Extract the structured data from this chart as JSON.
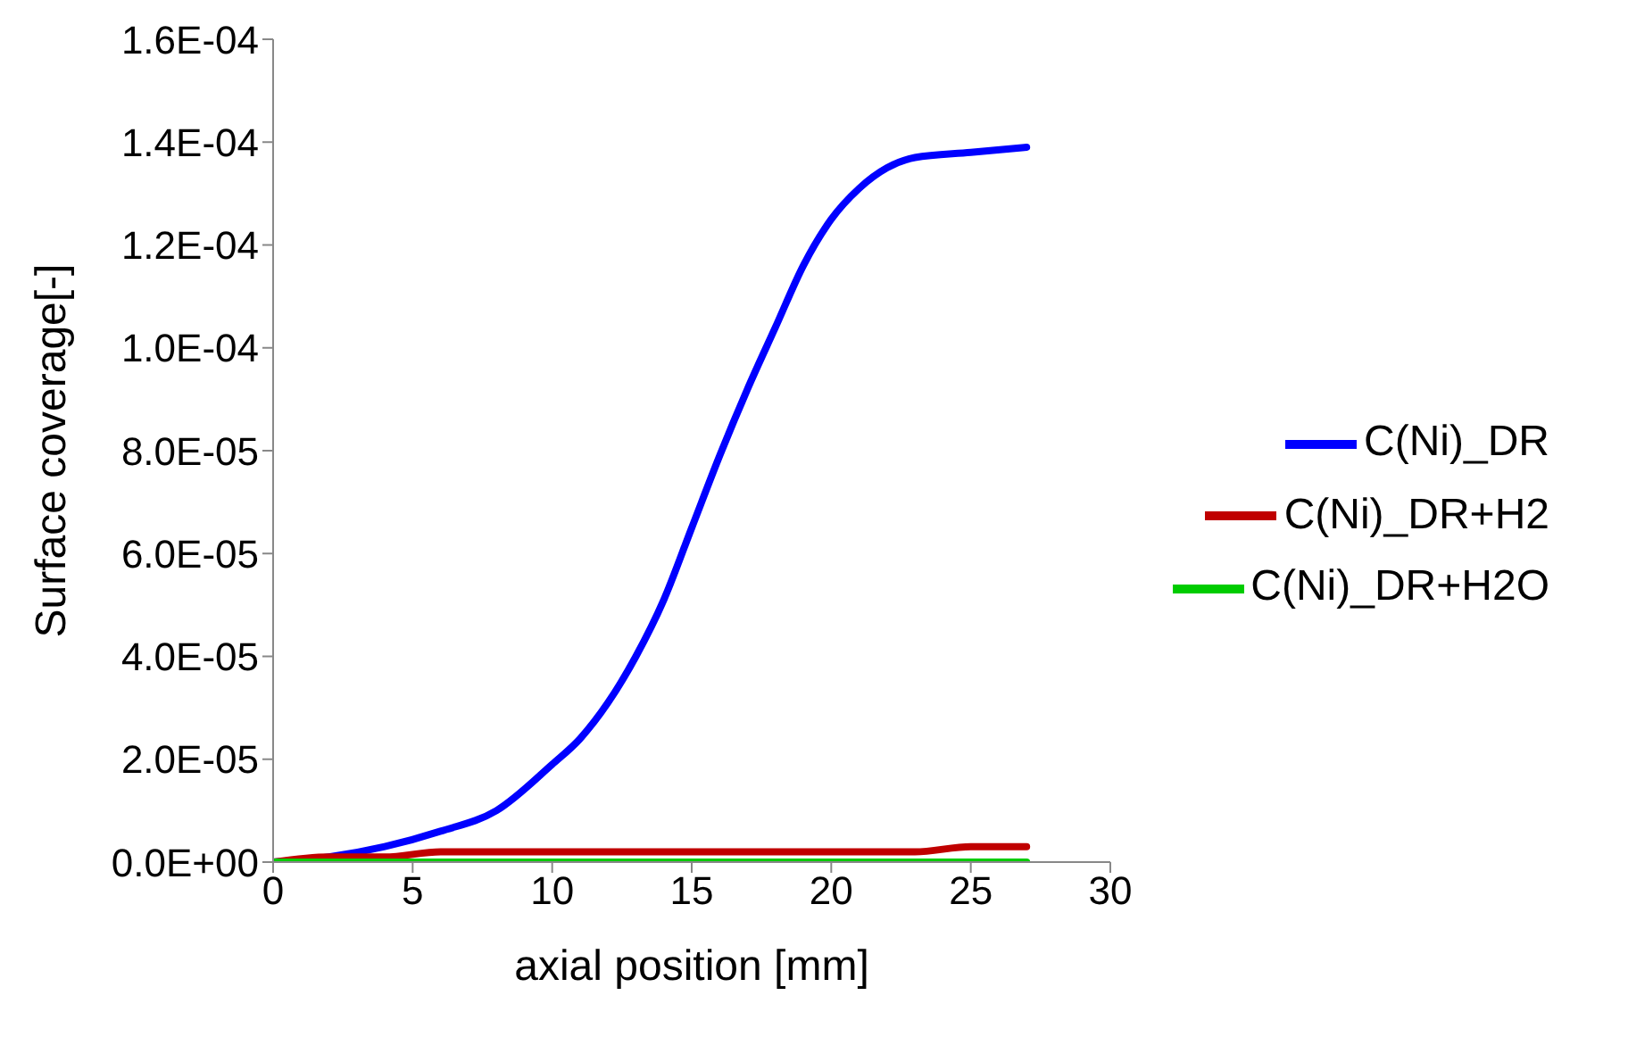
{
  "chart_data": {
    "type": "line",
    "xlabel": "axial position [mm]",
    "ylabel": "Surface coverage[-]",
    "xlim": [
      0,
      30
    ],
    "xticks": [
      0,
      5,
      10,
      15,
      20,
      25,
      30
    ],
    "ylim": [
      0,
      0.00016
    ],
    "yticks": [
      {
        "value": 0,
        "label": "0.0E+00"
      },
      {
        "value": 2e-05,
        "label": "2.0E-05"
      },
      {
        "value": 4e-05,
        "label": "4.0E-05"
      },
      {
        "value": 6e-05,
        "label": "6.0E-05"
      },
      {
        "value": 8e-05,
        "label": "8.0E-05"
      },
      {
        "value": 0.0001,
        "label": "1.0E-04"
      },
      {
        "value": 0.00012,
        "label": "1.2E-04"
      },
      {
        "value": 0.00014,
        "label": "1.4E-04"
      },
      {
        "value": 0.00016,
        "label": "1.6E-04"
      }
    ],
    "x": [
      0,
      2,
      4,
      6,
      8,
      10,
      11,
      12,
      13,
      14,
      15,
      16,
      17,
      18,
      19,
      20,
      21,
      22,
      23,
      25,
      27
    ],
    "series": [
      {
        "name": "C(Ni)_DR",
        "color": "#0000ff",
        "values": [
          0,
          1e-06,
          3e-06,
          6e-06,
          1e-05,
          1.9e-05,
          2.4e-05,
          3.1e-05,
          4e-05,
          5.1e-05,
          6.5e-05,
          7.9e-05,
          9.2e-05,
          0.000104,
          0.000116,
          0.000125,
          0.000131,
          0.000135,
          0.000137,
          0.000138,
          0.000139
        ]
      },
      {
        "name": "C(Ni)_DR+H2",
        "color": "#c00000",
        "values": [
          0,
          1e-06,
          1e-06,
          2e-06,
          2e-06,
          2e-06,
          2e-06,
          2e-06,
          2e-06,
          2e-06,
          2e-06,
          2e-06,
          2e-06,
          2e-06,
          2e-06,
          2e-06,
          2e-06,
          2e-06,
          2e-06,
          3e-06,
          3e-06
        ]
      },
      {
        "name": "C(Ni)_DR+H2O",
        "color": "#00cc00",
        "values": [
          0,
          0,
          0,
          0,
          0,
          0,
          0,
          0,
          0,
          0,
          0,
          0,
          0,
          0,
          0,
          0,
          0,
          0,
          0,
          0,
          0
        ]
      }
    ],
    "legend": "right",
    "marker": "none",
    "line_style": "solid"
  }
}
